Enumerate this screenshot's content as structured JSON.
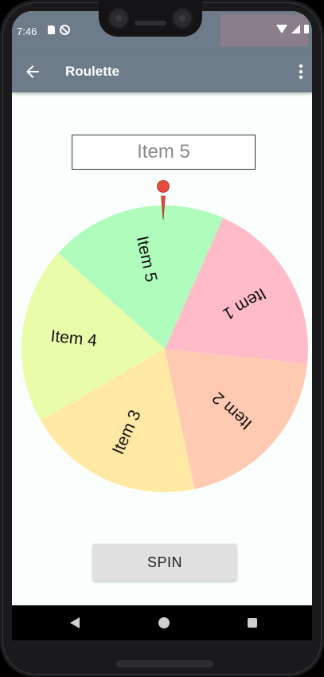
{
  "status_bar": {
    "time": "7:46"
  },
  "app_bar": {
    "title": "Roulette",
    "back_icon": "arrow-back-icon",
    "menu_icon": "more-vert-icon"
  },
  "result": {
    "value": "Item 5"
  },
  "wheel": {
    "items": [
      {
        "label": "Item 1",
        "color": "#ffbcc8"
      },
      {
        "label": "Item 2",
        "color": "#ffcab2"
      },
      {
        "label": "Item 3",
        "color": "#ffe9a4"
      },
      {
        "label": "Item 4",
        "color": "#e9fcaa"
      },
      {
        "label": "Item 5",
        "color": "#b0fcbc"
      }
    ],
    "pointer_color": "#e74c3c"
  },
  "spin_button": {
    "label": "SPIN"
  },
  "colors": {
    "app_bar": "#6d7c88",
    "background": "#fafffe"
  }
}
